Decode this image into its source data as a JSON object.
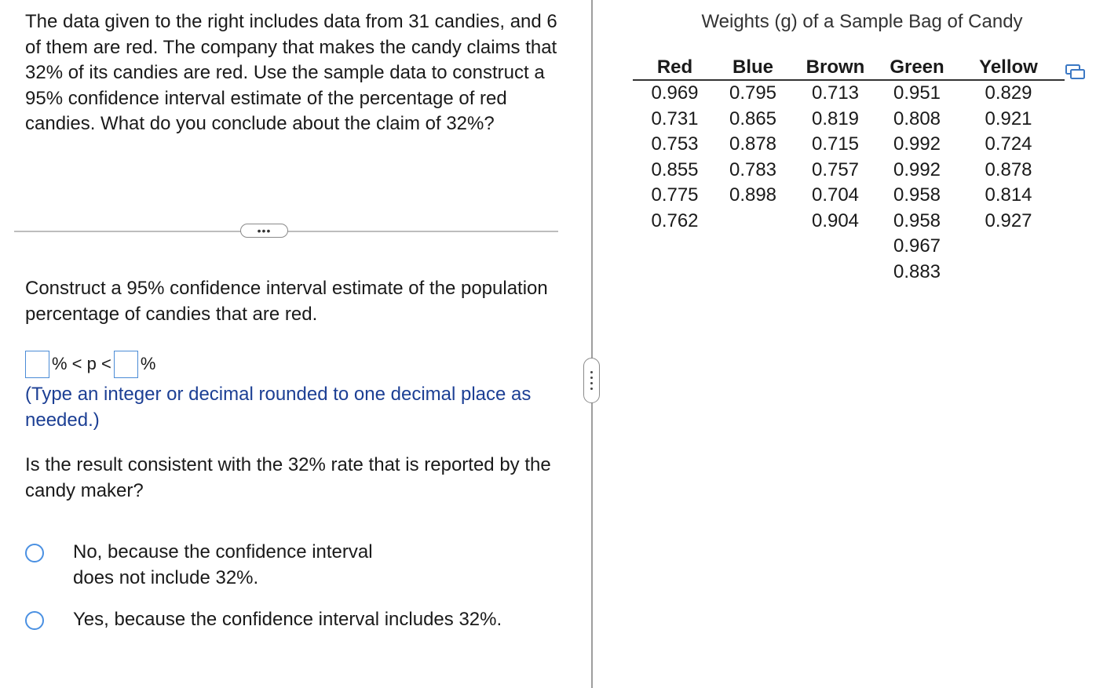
{
  "problem": {
    "intro_text": "The data given to the right includes data from 31 candies, and 6 of them are red. The company that makes the candy claims that 32% of its candies are red. Use the sample data to construct a 95% confidence interval estimate of the percentage of red candies. What do you conclude about the claim of 32%?",
    "more_button_label": "•••",
    "question1_text": "Construct a 95% confidence interval estimate of the population percentage of candies that are red.",
    "interval": {
      "lower_value": "",
      "upper_value": "",
      "middle_text": "% < p <",
      "end_text": "%"
    },
    "hint_text": "(Type an integer or decimal rounded to one decimal place as needed.)",
    "question2_text": "Is the result consistent with the 32% rate that is reported by the candy maker?",
    "options": [
      {
        "label": "No, because the confidence interval does not include 32%."
      },
      {
        "label": "Yes, because the confidence interval includes 32%."
      }
    ]
  },
  "data_table": {
    "title": "Weights (g) of a Sample Bag of Candy",
    "headers": [
      "Red",
      "Blue",
      "Brown",
      "Green",
      "Yellow"
    ],
    "columns": [
      [
        "0.969",
        "0.731",
        "0.753",
        "0.855",
        "0.775",
        "0.762"
      ],
      [
        "0.795",
        "0.865",
        "0.878",
        "0.783",
        "0.898"
      ],
      [
        "0.713",
        "0.819",
        "0.715",
        "0.757",
        "0.704",
        "0.904"
      ],
      [
        "0.951",
        "0.808",
        "0.992",
        "0.992",
        "0.958",
        "0.958",
        "0.967",
        "0.883"
      ],
      [
        "0.829",
        "0.921",
        "0.724",
        "0.878",
        "0.814",
        "0.927"
      ]
    ]
  },
  "colors": {
    "accent_blue": "#4a90e2",
    "hint_text": "#1c3f94",
    "divider": "#9e9e9e"
  },
  "icons": {
    "copy": "copy-data-icon",
    "more": "more-dots-icon",
    "handle": "pane-resize-handle-icon"
  }
}
